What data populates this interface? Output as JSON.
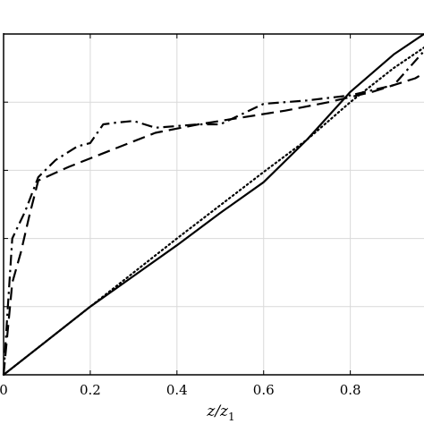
{
  "chart_data": {
    "type": "line",
    "xlabel": "z/z₁",
    "xlabel_main": "z/z",
    "xlabel_sub": "1",
    "xlim": [
      0,
      0.97
    ],
    "ylim": [
      0,
      1
    ],
    "grid": true,
    "x_ticks": [
      {
        "value": 0,
        "label": "0"
      },
      {
        "value": 0.2,
        "label": "0.2"
      },
      {
        "value": 0.4,
        "label": "0.4"
      },
      {
        "value": 0.6,
        "label": "0.6"
      },
      {
        "value": 0.8,
        "label": "0.8"
      }
    ],
    "y_gridlines": [
      0.2,
      0.4,
      0.6,
      0.8,
      1.0
    ],
    "series": [
      {
        "style": "solid",
        "points": [
          [
            0,
            0
          ],
          [
            0.1,
            0.1
          ],
          [
            0.2,
            0.2
          ],
          [
            0.3,
            0.29
          ],
          [
            0.4,
            0.38
          ],
          [
            0.5,
            0.475
          ],
          [
            0.6,
            0.565
          ],
          [
            0.7,
            0.69
          ],
          [
            0.8,
            0.83
          ],
          [
            0.9,
            0.94
          ],
          [
            0.97,
            1.0
          ]
        ]
      },
      {
        "style": "dotted",
        "points": [
          [
            0,
            0
          ],
          [
            0.2,
            0.2
          ],
          [
            0.4,
            0.4
          ],
          [
            0.6,
            0.595
          ],
          [
            0.7,
            0.69
          ],
          [
            0.8,
            0.8
          ],
          [
            0.9,
            0.9
          ],
          [
            0.97,
            0.96
          ]
        ]
      },
      {
        "style": "dashed",
        "points": [
          [
            0,
            0
          ],
          [
            0.02,
            0.27
          ],
          [
            0.04,
            0.36
          ],
          [
            0.06,
            0.47
          ],
          [
            0.08,
            0.57
          ],
          [
            0.15,
            0.61
          ],
          [
            0.25,
            0.66
          ],
          [
            0.35,
            0.71
          ],
          [
            0.45,
            0.735
          ],
          [
            0.55,
            0.755
          ],
          [
            0.65,
            0.775
          ],
          [
            0.75,
            0.8
          ],
          [
            0.85,
            0.83
          ],
          [
            0.95,
            0.87
          ],
          [
            0.97,
            0.885
          ]
        ]
      },
      {
        "style": "dashdot",
        "points": [
          [
            0,
            0
          ],
          [
            0.01,
            0.2
          ],
          [
            0.02,
            0.4
          ],
          [
            0.05,
            0.48
          ],
          [
            0.08,
            0.58
          ],
          [
            0.12,
            0.63
          ],
          [
            0.17,
            0.67
          ],
          [
            0.2,
            0.68
          ],
          [
            0.23,
            0.735
          ],
          [
            0.26,
            0.74
          ],
          [
            0.3,
            0.745
          ],
          [
            0.35,
            0.725
          ],
          [
            0.4,
            0.73
          ],
          [
            0.45,
            0.735
          ],
          [
            0.5,
            0.735
          ],
          [
            0.6,
            0.795
          ],
          [
            0.7,
            0.805
          ],
          [
            0.8,
            0.82
          ],
          [
            0.9,
            0.85
          ],
          [
            0.97,
            0.95
          ]
        ]
      }
    ]
  }
}
